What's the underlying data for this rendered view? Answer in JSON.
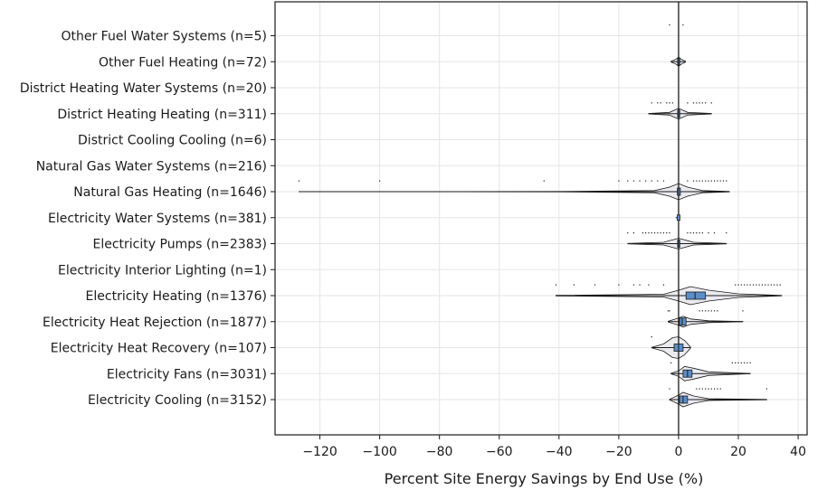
{
  "chart_data": {
    "type": "violin-boxplot",
    "orientation": "horizontal",
    "xlabel": "Percent Site Energy Savings by End Use (%)",
    "xlim": [
      -135,
      43
    ],
    "x_ticks": [
      -120,
      -100,
      -80,
      -60,
      -40,
      -20,
      0,
      20,
      40
    ],
    "x_tick_labels": [
      "−120",
      "−100",
      "−80",
      "−60",
      "−40",
      "−20",
      "0",
      "20",
      "40"
    ],
    "grid": true,
    "categories": [
      "Other Fuel Water Systems  (n=5)",
      "Other Fuel Heating  (n=72)",
      "District Heating Water Systems  (n=20)",
      "District Heating Heating  (n=311)",
      "District Cooling Cooling  (n=6)",
      "Natural Gas Water Systems  (n=216)",
      "Natural Gas Heating  (n=1646)",
      "Electricity Water Systems  (n=381)",
      "Electricity Pumps  (n=2383)",
      "Electricity Interior Lighting  (n=1)",
      "Electricity Heating  (n=1376)",
      "Electricity Heat Rejection  (n=1877)",
      "Electricity Heat Recovery  (n=107)",
      "Electricity Fans  (n=3031)",
      "Electricity Cooling  (n=3152)"
    ],
    "distributions": [
      {
        "min": 0,
        "q1": 0,
        "median": 0,
        "q3": 0,
        "max": 0,
        "violin": [],
        "outliers": [
          -3,
          1.5
        ]
      },
      {
        "min": -2.5,
        "q1": -0.3,
        "median": 0,
        "q3": 0.4,
        "max": 2.3,
        "violin": [
          [
            -2.5,
            0.4
          ],
          [
            -1,
            2.5
          ],
          [
            0,
            5
          ],
          [
            1,
            2.5
          ],
          [
            2.3,
            0.4
          ]
        ],
        "outliers": []
      },
      {
        "min": 0,
        "q1": 0,
        "median": 0,
        "q3": 0,
        "max": 0,
        "violin": [],
        "outliers": []
      },
      {
        "min": -10,
        "q1": -0.3,
        "median": 0,
        "q3": 0.4,
        "max": 11,
        "violin": [
          [
            -10,
            0.2
          ],
          [
            -3,
            1.5
          ],
          [
            0,
            6
          ],
          [
            3,
            1.5
          ],
          [
            11,
            0.2
          ]
        ],
        "outliers": [
          -9,
          -7,
          -6,
          -4,
          -3,
          -2,
          3,
          5,
          6,
          7,
          8,
          9,
          11
        ]
      },
      {
        "min": 0,
        "q1": 0,
        "median": 0,
        "q3": 0,
        "max": 0,
        "violin": [],
        "outliers": []
      },
      {
        "min": 0,
        "q1": 0,
        "median": 0,
        "q3": 0,
        "max": 0,
        "violin": [],
        "outliers": []
      },
      {
        "min": -127,
        "q1": -0.4,
        "median": 0,
        "q3": 0.6,
        "max": 17,
        "violin": [
          [
            -127,
            0.1
          ],
          [
            -40,
            0.2
          ],
          [
            -8,
            1.2
          ],
          [
            -3,
            5
          ],
          [
            0,
            9
          ],
          [
            3,
            5
          ],
          [
            8,
            1.2
          ],
          [
            17,
            0.2
          ]
        ],
        "outliers": [
          -127,
          -100,
          -45,
          -20,
          -17,
          -15,
          -13,
          -11,
          -9,
          -7,
          -5,
          3,
          5,
          6,
          7,
          8,
          9,
          10,
          11,
          12,
          13,
          14,
          15,
          16
        ]
      },
      {
        "min": -1,
        "q1": 0,
        "median": 0,
        "q3": 0,
        "max": 0.5,
        "violin": [],
        "outliers": []
      },
      {
        "min": -17,
        "q1": -0.3,
        "median": 0,
        "q3": 0.4,
        "max": 16,
        "violin": [
          [
            -17,
            0.2
          ],
          [
            -5,
            1.5
          ],
          [
            0,
            6
          ],
          [
            5,
            1.5
          ],
          [
            16,
            0.2
          ]
        ],
        "outliers": [
          -17,
          -15,
          -12,
          -11,
          -10,
          -9,
          -8,
          -7,
          -6,
          -5,
          -4,
          -3,
          3,
          4,
          5,
          6,
          7,
          8,
          10,
          12,
          16
        ]
      },
      {
        "min": 0,
        "q1": 0,
        "median": 0,
        "q3": 0,
        "max": 0,
        "violin": [],
        "outliers": []
      },
      {
        "min": -41,
        "q1": 2.5,
        "median": 5.5,
        "q3": 9,
        "max": 34.5,
        "violin": [
          [
            -41,
            0.3
          ],
          [
            -5,
            1.5
          ],
          [
            0,
            6
          ],
          [
            4,
            10
          ],
          [
            10,
            6
          ],
          [
            20,
            2
          ],
          [
            34.5,
            0.3
          ]
        ],
        "outliers": [
          -41,
          -35,
          -28,
          -20,
          -15,
          -13,
          -10,
          -5,
          19,
          20,
          21,
          22,
          23,
          24,
          25,
          26,
          27,
          28,
          29,
          30,
          31,
          32,
          33,
          34
        ]
      },
      {
        "min": -3.5,
        "q1": 0.3,
        "median": 1.2,
        "q3": 2.5,
        "max": 21.5,
        "violin": [
          [
            -3.5,
            0.4
          ],
          [
            0,
            4
          ],
          [
            1.5,
            6
          ],
          [
            4,
            3
          ],
          [
            10,
            1
          ],
          [
            21.5,
            0.2
          ]
        ],
        "outliers": [
          -3.5,
          -3,
          7,
          8,
          9,
          10,
          11,
          12,
          13,
          21.5
        ]
      },
      {
        "min": -9,
        "q1": -1.5,
        "median": 0,
        "q3": 1.5,
        "max": 4,
        "violin": [
          [
            -9,
            0.2
          ],
          [
            -5,
            4
          ],
          [
            -2,
            11
          ],
          [
            0,
            12
          ],
          [
            2,
            8
          ],
          [
            4,
            0.5
          ]
        ],
        "outliers": [
          -9
        ]
      },
      {
        "min": -2.5,
        "q1": 1.5,
        "median": 3,
        "q3": 4.5,
        "max": 24,
        "violin": [
          [
            -2.5,
            0.3
          ],
          [
            0,
            3
          ],
          [
            2,
            8
          ],
          [
            5,
            6
          ],
          [
            10,
            2
          ],
          [
            24,
            0.2
          ]
        ],
        "outliers": [
          -2.5,
          18,
          19,
          20,
          21,
          22,
          23,
          24
        ]
      },
      {
        "min": -3,
        "q1": 0.3,
        "median": 1.5,
        "q3": 3,
        "max": 29.5,
        "violin": [
          [
            -3,
            0.3
          ],
          [
            0,
            5
          ],
          [
            1.5,
            8
          ],
          [
            5,
            4
          ],
          [
            10,
            1
          ],
          [
            29.5,
            0.2
          ]
        ],
        "outliers": [
          -3,
          6,
          7,
          8,
          9,
          10,
          11,
          12,
          13,
          14,
          29.5
        ]
      }
    ],
    "colors": {
      "box_fill": "#5b8ec9",
      "violin_fill": "#eaeaef",
      "line": "#1a1a1a",
      "grid": "#e6e6e6"
    }
  }
}
